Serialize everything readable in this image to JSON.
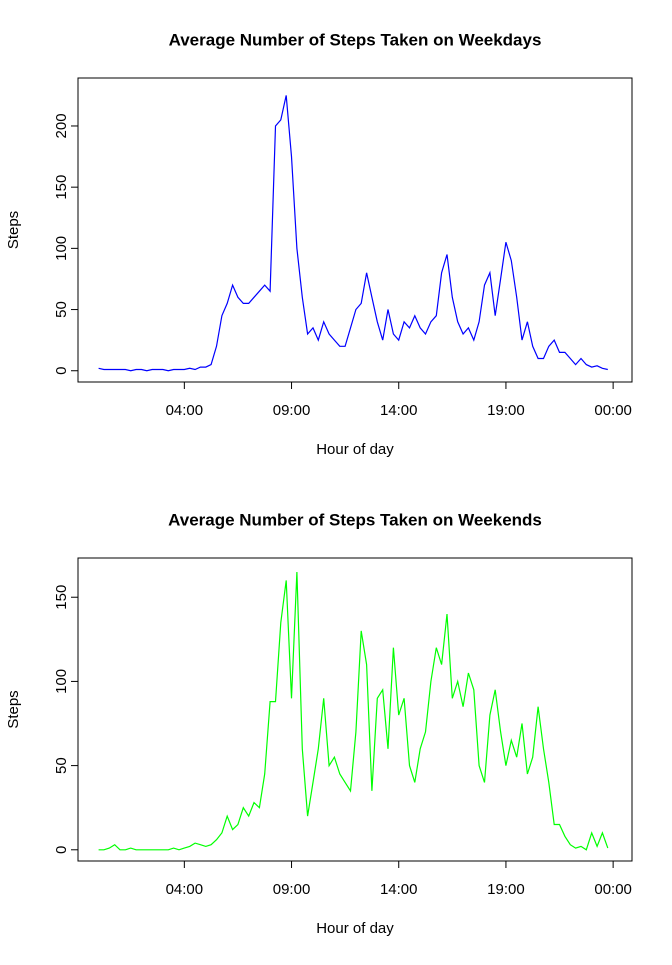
{
  "chart_data": [
    {
      "type": "line",
      "title": "Average Number of Steps Taken on Weekdays",
      "xlabel": "Hour of day",
      "ylabel": "Steps",
      "color": "#0000ff",
      "x": [
        0,
        0.25,
        0.5,
        0.75,
        1,
        1.25,
        1.5,
        1.75,
        2,
        2.25,
        2.5,
        2.75,
        3,
        3.25,
        3.5,
        3.75,
        4,
        4.25,
        4.5,
        4.75,
        5,
        5.25,
        5.5,
        5.75,
        6,
        6.25,
        6.5,
        6.75,
        7,
        7.25,
        7.5,
        7.75,
        8,
        8.25,
        8.5,
        8.75,
        9,
        9.25,
        9.5,
        9.75,
        10,
        10.25,
        10.5,
        10.75,
        11,
        11.25,
        11.5,
        11.75,
        12,
        12.25,
        12.5,
        12.75,
        13,
        13.25,
        13.5,
        13.75,
        14,
        14.25,
        14.5,
        14.75,
        15,
        15.25,
        15.5,
        15.75,
        16,
        16.25,
        16.5,
        16.75,
        17,
        17.25,
        17.5,
        17.75,
        18,
        18.25,
        18.5,
        18.75,
        19,
        19.25,
        19.5,
        19.75,
        20,
        20.25,
        20.5,
        20.75,
        21,
        21.25,
        21.5,
        21.75,
        22,
        22.25,
        22.5,
        22.75,
        23,
        23.25,
        23.5,
        23.75
      ],
      "values": [
        2,
        1,
        1,
        1,
        1,
        1,
        0,
        1,
        1,
        0,
        1,
        1,
        1,
        0,
        1,
        1,
        1,
        2,
        1,
        3,
        3,
        5,
        20,
        45,
        55,
        70,
        60,
        55,
        55,
        60,
        65,
        70,
        65,
        200,
        205,
        225,
        175,
        100,
        60,
        30,
        35,
        25,
        40,
        30,
        25,
        20,
        20,
        35,
        50,
        55,
        80,
        60,
        40,
        25,
        50,
        30,
        25,
        40,
        35,
        45,
        35,
        30,
        40,
        45,
        80,
        95,
        60,
        40,
        30,
        35,
        25,
        40,
        70,
        80,
        45,
        75,
        105,
        90,
        60,
        25,
        40,
        20,
        10,
        10,
        20,
        25,
        15,
        15,
        10,
        5,
        10,
        5,
        3,
        4,
        2,
        1
      ],
      "xlim": [
        -0.96,
        24.88
      ],
      "xticks": [
        {
          "value": 4,
          "label": "04:00"
        },
        {
          "value": 9,
          "label": "09:00"
        },
        {
          "value": 14,
          "label": "14:00"
        },
        {
          "value": 19,
          "label": "19:00"
        },
        {
          "value": 24,
          "label": "00:00"
        }
      ],
      "ylim": [
        -9.2,
        239.2
      ],
      "yticks": [
        0,
        50,
        100,
        150,
        200
      ]
    },
    {
      "type": "line",
      "title": "Average Number of Steps Taken on Weekends",
      "xlabel": "Hour of day",
      "ylabel": "Steps",
      "color": "#00ff00",
      "x": [
        0,
        0.25,
        0.5,
        0.75,
        1,
        1.25,
        1.5,
        1.75,
        2,
        2.25,
        2.5,
        2.75,
        3,
        3.25,
        3.5,
        3.75,
        4,
        4.25,
        4.5,
        4.75,
        5,
        5.25,
        5.5,
        5.75,
        6,
        6.25,
        6.5,
        6.75,
        7,
        7.25,
        7.5,
        7.75,
        8,
        8.25,
        8.5,
        8.75,
        9,
        9.25,
        9.5,
        9.75,
        10,
        10.25,
        10.5,
        10.75,
        11,
        11.25,
        11.5,
        11.75,
        12,
        12.25,
        12.5,
        12.75,
        13,
        13.25,
        13.5,
        13.75,
        14,
        14.25,
        14.5,
        14.75,
        15,
        15.25,
        15.5,
        15.75,
        16,
        16.25,
        16.5,
        16.75,
        17,
        17.25,
        17.5,
        17.75,
        18,
        18.25,
        18.5,
        18.75,
        19,
        19.25,
        19.5,
        19.75,
        20,
        20.25,
        20.5,
        20.75,
        21,
        21.25,
        21.5,
        21.75,
        22,
        22.25,
        22.5,
        22.75,
        23,
        23.25,
        23.5,
        23.75
      ],
      "values": [
        0,
        0,
        1,
        3,
        0,
        0,
        1,
        0,
        0,
        0,
        0,
        0,
        0,
        0,
        1,
        0,
        1,
        2,
        4,
        3,
        2,
        3,
        6,
        10,
        20,
        12,
        15,
        25,
        20,
        28,
        25,
        45,
        88,
        88,
        135,
        160,
        90,
        165,
        60,
        20,
        40,
        60,
        90,
        50,
        55,
        45,
        40,
        35,
        70,
        130,
        110,
        35,
        90,
        95,
        60,
        120,
        80,
        90,
        50,
        40,
        60,
        70,
        100,
        120,
        110,
        140,
        90,
        100,
        85,
        105,
        95,
        50,
        40,
        80,
        95,
        70,
        50,
        65,
        55,
        75,
        45,
        55,
        85,
        60,
        40,
        15,
        15,
        8,
        3,
        1,
        2,
        0,
        10,
        2,
        10,
        1
      ],
      "xlim": [
        -0.96,
        24.88
      ],
      "xticks": [
        {
          "value": 4,
          "label": "04:00"
        },
        {
          "value": 9,
          "label": "09:00"
        },
        {
          "value": 14,
          "label": "14:00"
        },
        {
          "value": 19,
          "label": "19:00"
        },
        {
          "value": 24,
          "label": "00:00"
        }
      ],
      "ylim": [
        -6.66,
        173.3
      ],
      "yticks": [
        0,
        50,
        100,
        150
      ]
    }
  ]
}
